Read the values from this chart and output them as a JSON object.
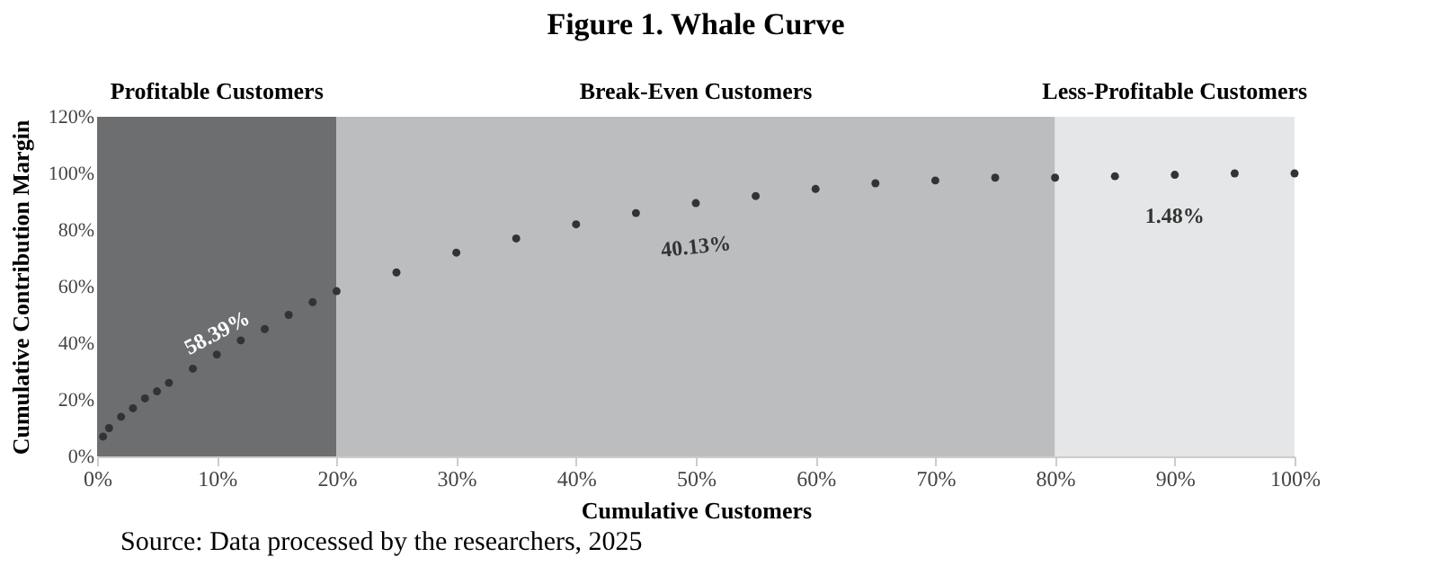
{
  "chart_data": {
    "type": "scatter",
    "title": "Figure 1. Whale Curve",
    "xlabel": "Cumulative Customers",
    "ylabel": "Cumulative Contribution Margin",
    "x": [
      0.5,
      1,
      2,
      3,
      4,
      5,
      6,
      8,
      10,
      12,
      14,
      16,
      18,
      20,
      25,
      30,
      35,
      40,
      45,
      50,
      55,
      60,
      65,
      70,
      75,
      80,
      85,
      90,
      95,
      100
    ],
    "series": [
      {
        "color": "#333333",
        "values": [
          7,
          10,
          14,
          17,
          20.5,
          23,
          26,
          31,
          36,
          41,
          45,
          50,
          54.5,
          58.4,
          65,
          72,
          77,
          82,
          86,
          89.5,
          92,
          94.5,
          96.5,
          97.5,
          98.5,
          98.5,
          99,
          99.5,
          100,
          100
        ]
      }
    ],
    "marker": "circle",
    "xlim": [
      0,
      100
    ],
    "xticks": [
      {
        "value": 0,
        "label": "0%"
      },
      {
        "value": 10,
        "label": "10%"
      },
      {
        "value": 20,
        "label": "20%"
      },
      {
        "value": 30,
        "label": "30%"
      },
      {
        "value": 40,
        "label": "40%"
      },
      {
        "value": 50,
        "label": "50%"
      },
      {
        "value": 60,
        "label": "60%"
      },
      {
        "value": 70,
        "label": "70%"
      },
      {
        "value": 80,
        "label": "80%"
      },
      {
        "value": 90,
        "label": "90%"
      },
      {
        "value": 100,
        "label": "100%"
      }
    ],
    "ylim": [
      0,
      120
    ],
    "yticks": [
      {
        "value": 0,
        "label": "0%"
      },
      {
        "value": 20,
        "label": "20%"
      },
      {
        "value": 40,
        "label": "40%"
      },
      {
        "value": 60,
        "label": "60%"
      },
      {
        "value": 80,
        "label": "80%"
      },
      {
        "value": 100,
        "label": "100%"
      },
      {
        "value": 120,
        "label": "120%"
      }
    ],
    "bands": [
      {
        "axis": "x",
        "from": 0,
        "to": 20,
        "label": "Profitable Customers",
        "color": "#6d6e70"
      },
      {
        "axis": "x",
        "from": 20,
        "to": 80,
        "label": "Break-Even Customers",
        "color": "#bcbdbf"
      },
      {
        "axis": "x",
        "from": 80,
        "to": 100,
        "label": "Less-Profitable Customers",
        "color": "#e5e6e8"
      }
    ],
    "annotations": [
      "58.39%",
      "40.13%",
      "1.48%",
      "Source: Data processed by the researchers, 2025"
    ]
  }
}
